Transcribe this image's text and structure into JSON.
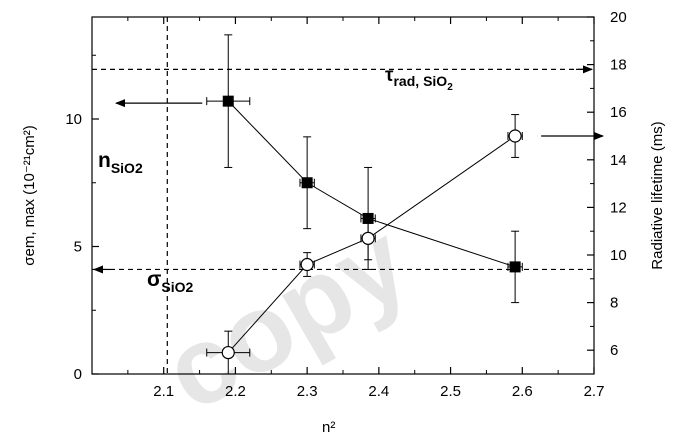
{
  "chart_data": {
    "type": "scatter",
    "x": [
      2.19,
      2.3,
      2.385,
      2.59
    ],
    "xlabel": "n²",
    "xlim": [
      2.0,
      2.7
    ],
    "xticks": [
      "2.1",
      "2.2",
      "2.3",
      "2.4",
      "2.5",
      "2.6",
      "2.7"
    ],
    "ylabel_left": "σem, max (10⁻²¹cm²)",
    "ylim_left": [
      0,
      14
    ],
    "yticks_left": [
      "0",
      "5",
      "10"
    ],
    "ylabel_right": "Radiative lifetime (ms)",
    "ylim_right": [
      5,
      20
    ],
    "yticks_right": [
      "6",
      "8",
      "10",
      "12",
      "14",
      "16",
      "18",
      "20"
    ],
    "series": [
      {
        "marker": "filled-square",
        "axis": "left",
        "values": [
          10.7,
          7.5,
          6.1,
          4.2
        ],
        "y_err": [
          2.6,
          1.8,
          2.0,
          1.4
        ],
        "x_err": [
          0.03,
          0.01,
          0.01,
          0.01
        ]
      },
      {
        "marker": "open-circle",
        "axis": "right",
        "values": [
          5.9,
          9.6,
          10.7,
          15.0
        ],
        "y_err": [
          0.9,
          0.5,
          0.9,
          0.9
        ],
        "x_err": [
          0.03,
          0.01,
          0.01,
          0.01
        ]
      }
    ],
    "reference_lines": [
      {
        "orientation": "horizontal",
        "axis": "left",
        "value": 4.1,
        "style": "dashed"
      },
      {
        "orientation": "horizontal",
        "axis": "right",
        "value": 17.8,
        "style": "dashed"
      },
      {
        "orientation": "vertical",
        "value": 2.105,
        "style": "dashed"
      }
    ],
    "annotations": {
      "n_sio2": {
        "main": "n",
        "sub": "SiO2"
      },
      "sigma_sio2": {
        "main": "σ",
        "sub": "SiO2"
      },
      "tau_rad_sio2": {
        "main": "τ",
        "sub": "rad",
        "middle": ", ",
        "main_sub": "SiO",
        "sub2": "2"
      }
    },
    "grid": false,
    "legend": "none"
  },
  "watermark": "copy"
}
